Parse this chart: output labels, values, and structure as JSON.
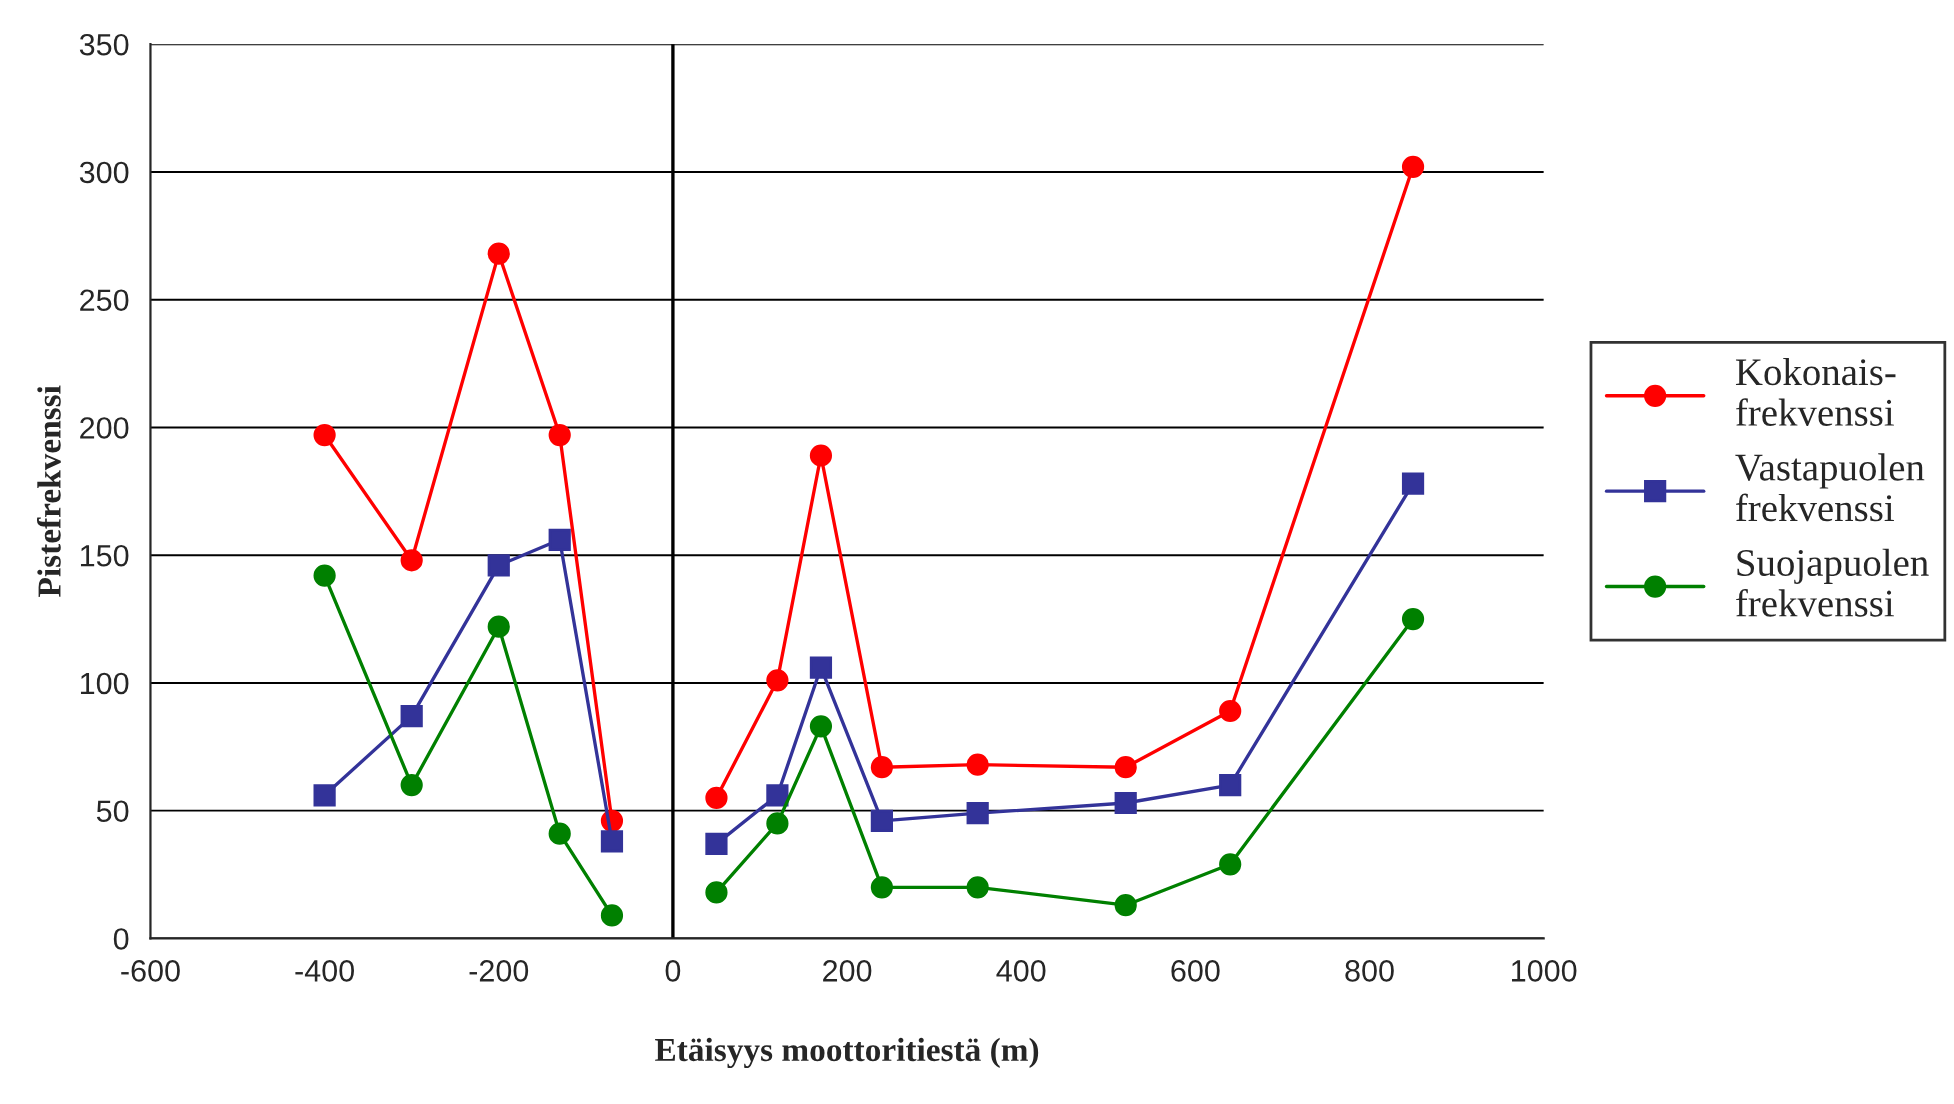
{
  "chart_data": {
    "type": "line",
    "xlabel": "Etäisyys moottoritiestä (m)",
    "ylabel": "Pistefrekvenssi",
    "x": [
      -400,
      -300,
      -200,
      -130,
      -70,
      null,
      50,
      120,
      170,
      240,
      350,
      520,
      640,
      850
    ],
    "series": [
      {
        "name": "Kokonais-\nfrekvenssi",
        "color": "#ff0000",
        "marker": "circle",
        "values": [
          197,
          148,
          268,
          197,
          46,
          null,
          55,
          101,
          189,
          67,
          68,
          67,
          89,
          302
        ]
      },
      {
        "name": "Vastapuolen\nfrekvenssi",
        "color": "#333399",
        "marker": "square",
        "values": [
          56,
          87,
          146,
          156,
          38,
          null,
          37,
          56,
          106,
          46,
          49,
          53,
          60,
          178
        ]
      },
      {
        "name": "Suojapuolen\nfrekvenssi",
        "color": "#008000",
        "marker": "circle",
        "values": [
          142,
          60,
          122,
          41,
          9,
          null,
          18,
          45,
          83,
          20,
          20,
          13,
          29,
          125
        ]
      }
    ],
    "xlim": [
      -600,
      1000
    ],
    "xticks": [
      -600,
      -400,
      -200,
      0,
      200,
      400,
      600,
      800,
      1000
    ],
    "ylim": [
      0,
      350
    ],
    "yticks": [
      0,
      50,
      100,
      150,
      200,
      250,
      300,
      350
    ],
    "grid": "y",
    "legend": "right",
    "line_style": "solid",
    "ref_lines": [
      {
        "axis": "x",
        "value": 0,
        "color": "#000000"
      }
    ]
  }
}
